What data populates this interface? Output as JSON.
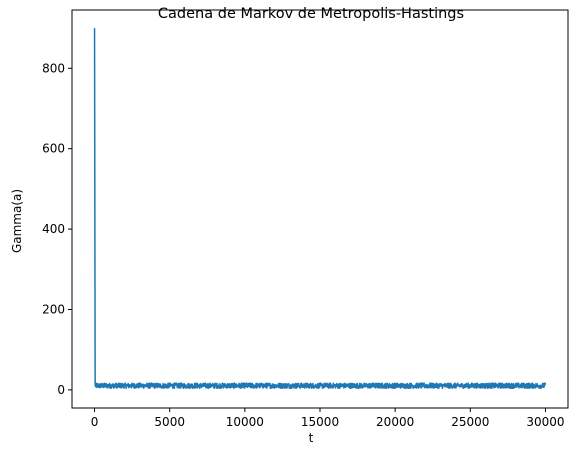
{
  "chart_data": {
    "type": "line",
    "title": "Cadena de Markov de Metropolis-Hastings",
    "xlabel": "t",
    "ylabel": "Gamma(a)",
    "xlim": [
      -1500,
      31500
    ],
    "ylim": [
      -45,
      945
    ],
    "xticks": [
      0,
      5000,
      10000,
      15000,
      20000,
      25000,
      30000
    ],
    "yticks": [
      0,
      200,
      400,
      600,
      800
    ],
    "grid": false,
    "series": [
      {
        "color": "#1f77b4",
        "initial_points": [
          {
            "x": 0,
            "y": 900
          },
          {
            "x": 40,
            "y": 12
          }
        ],
        "stationary_level": 10,
        "stationary_low": 4,
        "stationary_high": 17,
        "x_end": 30000
      }
    ]
  }
}
